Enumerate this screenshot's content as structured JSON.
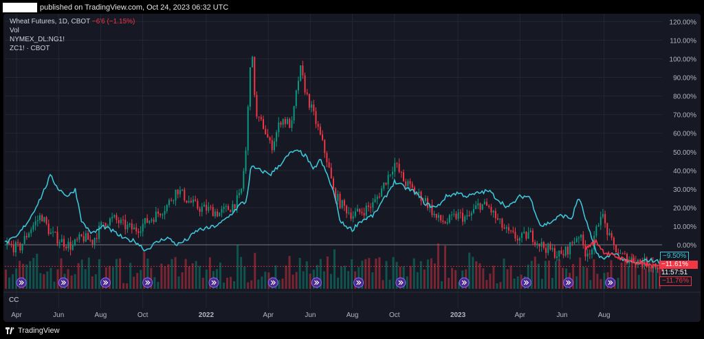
{
  "header": {
    "published_text": "published on TradingView.com, Oct 24, 2023 06:32 UTC"
  },
  "legend": {
    "main_name": "Wheat Futures, 1D, CBOT",
    "main_change": "−6'6 (−1.15%)",
    "vol_label": "Vol",
    "compare1": "NYMEX_DL:NG1!",
    "compare2": "ZC1! · CBOT"
  },
  "pane_label": "CC",
  "footer": {
    "brand": "TradingView"
  },
  "badges": {
    "cyan_value": "−9.50%",
    "red_value": "−11.61%",
    "red_countdown": "11:57:51",
    "red2_value": "−11.76%"
  },
  "colors": {
    "background": "#161923",
    "grid": "#232733",
    "up_candle": "#089981",
    "down_candle": "#f23645",
    "compare_line": "#3dc5d9",
    "axis_text": "#b2b5be"
  },
  "chart_data": {
    "type": "line",
    "title": "Wheat Futures, 1D, CBOT",
    "y_axis": {
      "unit": "percent",
      "ticks": [
        120,
        110,
        100,
        90,
        80,
        70,
        60,
        50,
        40,
        30,
        20,
        10,
        0
      ],
      "tick_labels": [
        "120.00%",
        "110.00%",
        "100.00%",
        "90.00%",
        "80.00%",
        "70.00%",
        "60.00%",
        "50.00%",
        "40.00%",
        "30.00%",
        "20.00%",
        "10.00%",
        "0.00%"
      ],
      "range": [
        -14,
        122
      ]
    },
    "x_axis": {
      "range": [
        "2021-03-15",
        "2023-10-24"
      ],
      "ticks": [
        {
          "date": "2021-04-01",
          "label": "Apr",
          "bold": false
        },
        {
          "date": "2021-06-01",
          "label": "Jun",
          "bold": false
        },
        {
          "date": "2021-08-01",
          "label": "Aug",
          "bold": false
        },
        {
          "date": "2021-10-01",
          "label": "Oct",
          "bold": false
        },
        {
          "date": "2022-01-01",
          "label": "2022",
          "bold": true
        },
        {
          "date": "2022-04-01",
          "label": "Apr",
          "bold": false
        },
        {
          "date": "2022-06-01",
          "label": "Jun",
          "bold": false
        },
        {
          "date": "2022-08-01",
          "label": "Aug",
          "bold": false
        },
        {
          "date": "2022-10-01",
          "label": "Oct",
          "bold": false
        },
        {
          "date": "2023-01-01",
          "label": "2023",
          "bold": true
        },
        {
          "date": "2023-04-01",
          "label": "Apr",
          "bold": false
        },
        {
          "date": "2023-06-01",
          "label": "Jun",
          "bold": false
        },
        {
          "date": "2023-08-01",
          "label": "Aug",
          "bold": false
        }
      ]
    },
    "grid": true,
    "series": [
      {
        "name": "Wheat Futures, 1D, CBOT",
        "style": "candles",
        "points": [
          [
            "2021-03-15",
            0
          ],
          [
            "2021-04-05",
            -2
          ],
          [
            "2021-04-20",
            8
          ],
          [
            "2021-05-07",
            16
          ],
          [
            "2021-05-20",
            6
          ],
          [
            "2021-06-05",
            2
          ],
          [
            "2021-06-20",
            -1
          ],
          [
            "2021-07-05",
            4
          ],
          [
            "2021-07-20",
            2
          ],
          [
            "2021-08-05",
            12
          ],
          [
            "2021-08-20",
            14
          ],
          [
            "2021-09-05",
            10
          ],
          [
            "2021-09-20",
            8
          ],
          [
            "2021-10-05",
            12
          ],
          [
            "2021-10-20",
            16
          ],
          [
            "2021-11-05",
            21
          ],
          [
            "2021-11-20",
            30
          ],
          [
            "2021-12-05",
            24
          ],
          [
            "2021-12-20",
            20
          ],
          [
            "2022-01-05",
            19
          ],
          [
            "2022-01-20",
            17
          ],
          [
            "2022-02-05",
            20
          ],
          [
            "2022-02-20",
            26
          ],
          [
            "2022-02-28",
            52
          ],
          [
            "2022-03-07",
            108
          ],
          [
            "2022-03-15",
            68
          ],
          [
            "2022-03-25",
            64
          ],
          [
            "2022-04-05",
            52
          ],
          [
            "2022-04-20",
            68
          ],
          [
            "2022-05-05",
            64
          ],
          [
            "2022-05-17",
            95
          ],
          [
            "2022-05-27",
            80
          ],
          [
            "2022-06-10",
            65
          ],
          [
            "2022-06-25",
            46
          ],
          [
            "2022-07-05",
            28
          ],
          [
            "2022-07-15",
            22
          ],
          [
            "2022-08-01",
            16
          ],
          [
            "2022-08-15",
            18
          ],
          [
            "2022-09-01",
            22
          ],
          [
            "2022-09-15",
            32
          ],
          [
            "2022-10-01",
            44
          ],
          [
            "2022-10-15",
            34
          ],
          [
            "2022-11-01",
            28
          ],
          [
            "2022-11-15",
            24
          ],
          [
            "2022-12-01",
            14
          ],
          [
            "2022-12-15",
            12
          ],
          [
            "2023-01-01",
            16
          ],
          [
            "2023-01-15",
            14
          ],
          [
            "2023-02-01",
            22
          ],
          [
            "2023-02-15",
            20
          ],
          [
            "2023-03-01",
            12
          ],
          [
            "2023-03-15",
            6
          ],
          [
            "2023-04-01",
            3
          ],
          [
            "2023-04-15",
            6
          ],
          [
            "2023-05-01",
            0
          ],
          [
            "2023-05-15",
            -3
          ],
          [
            "2023-05-31",
            -6
          ],
          [
            "2023-06-10",
            -2
          ],
          [
            "2023-06-25",
            6
          ],
          [
            "2023-07-05",
            -4
          ],
          [
            "2023-07-15",
            -2
          ],
          [
            "2023-07-27",
            18
          ],
          [
            "2023-08-10",
            2
          ],
          [
            "2023-08-25",
            -6
          ],
          [
            "2023-09-10",
            -8
          ],
          [
            "2023-09-25",
            -9
          ],
          [
            "2023-10-10",
            -11
          ],
          [
            "2023-10-24",
            -11.61
          ]
        ]
      },
      {
        "name": "NYMEX_DL:NG1!",
        "style": "line",
        "color": "#3dc5d9",
        "points": [
          [
            "2021-03-15",
            1
          ],
          [
            "2021-04-01",
            4
          ],
          [
            "2021-04-20",
            14
          ],
          [
            "2021-05-07",
            26
          ],
          [
            "2021-05-20",
            37
          ],
          [
            "2021-06-01",
            30
          ],
          [
            "2021-06-15",
            26
          ],
          [
            "2021-06-25",
            30
          ],
          [
            "2021-07-05",
            12
          ],
          [
            "2021-07-20",
            6
          ],
          [
            "2021-08-05",
            10
          ],
          [
            "2021-08-20",
            7
          ],
          [
            "2021-09-05",
            3
          ],
          [
            "2021-09-20",
            2
          ],
          [
            "2021-10-05",
            -3
          ],
          [
            "2021-10-20",
            1
          ],
          [
            "2021-11-05",
            4
          ],
          [
            "2021-11-20",
            0
          ],
          [
            "2021-12-05",
            3
          ],
          [
            "2021-12-20",
            8
          ],
          [
            "2022-01-05",
            9
          ],
          [
            "2022-01-20",
            11
          ],
          [
            "2022-02-05",
            16
          ],
          [
            "2022-02-20",
            22
          ],
          [
            "2022-02-28",
            23
          ],
          [
            "2022-03-07",
            42
          ],
          [
            "2022-03-20",
            40
          ],
          [
            "2022-04-05",
            38
          ],
          [
            "2022-04-20",
            44
          ],
          [
            "2022-05-05",
            50
          ],
          [
            "2022-05-17",
            50
          ],
          [
            "2022-05-27",
            47
          ],
          [
            "2022-06-05",
            40
          ],
          [
            "2022-06-15",
            46
          ],
          [
            "2022-06-25",
            38
          ],
          [
            "2022-07-05",
            28
          ],
          [
            "2022-07-15",
            12
          ],
          [
            "2022-08-01",
            8
          ],
          [
            "2022-08-10",
            12
          ],
          [
            "2022-08-20",
            14
          ],
          [
            "2022-09-01",
            16
          ],
          [
            "2022-09-15",
            24
          ],
          [
            "2022-10-01",
            34
          ],
          [
            "2022-10-15",
            31
          ],
          [
            "2022-11-01",
            28
          ],
          [
            "2022-11-15",
            22
          ],
          [
            "2022-12-01",
            20
          ],
          [
            "2022-12-15",
            26
          ],
          [
            "2023-01-01",
            28
          ],
          [
            "2023-01-15",
            26
          ],
          [
            "2023-02-01",
            28
          ],
          [
            "2023-02-15",
            29
          ],
          [
            "2023-03-01",
            24
          ],
          [
            "2023-03-15",
            20
          ],
          [
            "2023-04-01",
            26
          ],
          [
            "2023-04-15",
            26
          ],
          [
            "2023-05-01",
            10
          ],
          [
            "2023-05-15",
            12
          ],
          [
            "2023-05-31",
            16
          ],
          [
            "2023-06-15",
            14
          ],
          [
            "2023-06-25",
            26
          ],
          [
            "2023-07-05",
            14
          ],
          [
            "2023-07-20",
            -4
          ],
          [
            "2023-08-01",
            -8
          ],
          [
            "2023-08-15",
            -4
          ],
          [
            "2023-09-01",
            -9
          ],
          [
            "2023-09-20",
            -10
          ],
          [
            "2023-10-05",
            -8
          ],
          [
            "2023-10-24",
            -9.5
          ]
        ]
      },
      {
        "name": "ZC1! · CBOT",
        "style": "line",
        "color": "#f23645",
        "points": [
          [
            "2023-07-05",
            -2
          ],
          [
            "2023-07-20",
            2
          ],
          [
            "2023-08-01",
            -4
          ],
          [
            "2023-08-15",
            -6
          ],
          [
            "2023-09-01",
            -8
          ],
          [
            "2023-09-20",
            -10
          ],
          [
            "2023-10-05",
            -11
          ],
          [
            "2023-10-24",
            -11.76
          ]
        ]
      }
    ],
    "volume_note": "Volume histogram in the lower band"
  }
}
